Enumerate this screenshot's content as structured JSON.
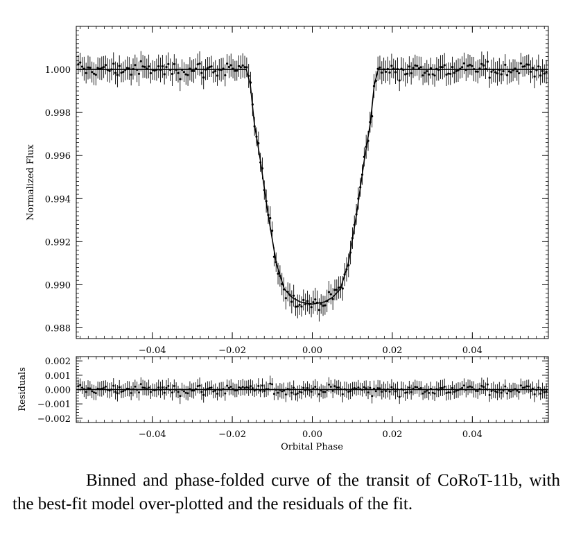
{
  "caption": "Binned and phase-folded curve of the transit of CoRoT-11b, with the best-fit model over-plotted and the residuals of the fit.",
  "chart_data": [
    {
      "type": "scatter",
      "panel": "main",
      "xlabel": "",
      "ylabel": "Normalized Flux",
      "xlim": [
        -0.059,
        0.059
      ],
      "ylim": [
        0.9875,
        1.002
      ],
      "xticks": [
        -0.04,
        -0.02,
        0.0,
        0.02,
        0.04
      ],
      "xtick_labels": [
        "−0.04",
        "−0.02",
        "0.00",
        "0.02",
        "0.04"
      ],
      "yticks": [
        0.988,
        0.99,
        0.992,
        0.994,
        0.996,
        0.998,
        1.0
      ],
      "ytick_labels": [
        "0.988",
        "0.990",
        "0.992",
        "0.994",
        "0.996",
        "0.998",
        "1.000"
      ],
      "model": {
        "description_points_x": [
          -0.059,
          -0.0165,
          -0.0155,
          -0.0145,
          -0.013,
          -0.011,
          -0.009,
          -0.007,
          -0.005,
          -0.003,
          0.0,
          0.003,
          0.005,
          0.007,
          0.009,
          0.011,
          0.013,
          0.0145,
          0.0155,
          0.0165,
          0.059
        ],
        "description_points_y": [
          1.0,
          1.0,
          0.9993,
          0.9975,
          0.9958,
          0.9932,
          0.991,
          0.9898,
          0.9894,
          0.9892,
          0.9891,
          0.9892,
          0.9894,
          0.9898,
          0.991,
          0.9932,
          0.9958,
          0.9975,
          0.9993,
          1.0,
          1.0
        ]
      },
      "points": {
        "n": 240,
        "x_start": -0.0585,
        "x_end": 0.0585,
        "flux_scatter": 0.0003,
        "errorbar": 0.0005
      }
    },
    {
      "type": "scatter",
      "panel": "residuals",
      "xlabel": "Orbital Phase",
      "ylabel": "Residuals",
      "xlim": [
        -0.059,
        0.059
      ],
      "ylim": [
        -0.0023,
        0.0023
      ],
      "xticks": [
        -0.04,
        -0.02,
        0.0,
        0.02,
        0.04
      ],
      "xtick_labels": [
        "−0.04",
        "−0.02",
        "0.00",
        "0.02",
        "0.04"
      ],
      "yticks": [
        -0.002,
        -0.001,
        0.0,
        0.001,
        0.002
      ],
      "ytick_labels": [
        "−0.002",
        "−0.001",
        "0.000",
        "0.001",
        "0.002"
      ],
      "zero_line": 0.0
    }
  ]
}
